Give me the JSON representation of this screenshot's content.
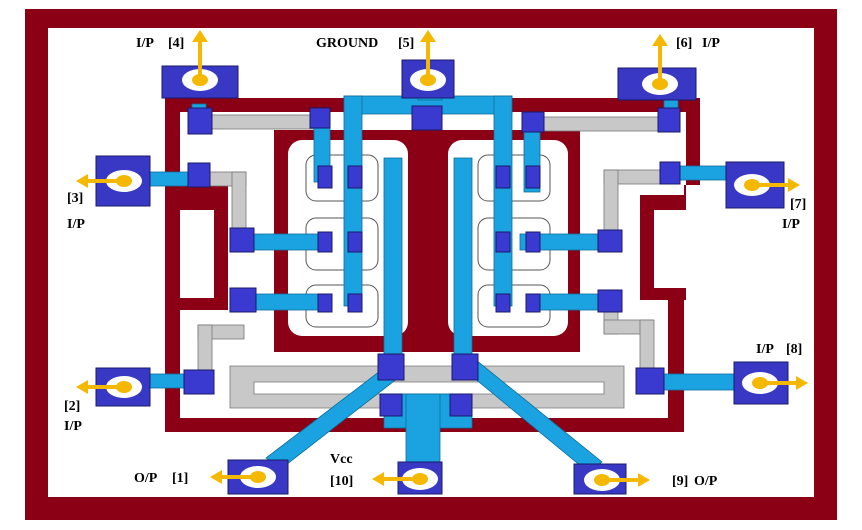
{
  "colors": {
    "frame": "#8b0015",
    "background": "#ffffff",
    "metal": "#1aa3e0",
    "pad": "#3838c4",
    "contact": "#3a3ad0",
    "poly": "#c8c8c8",
    "arrow": "#f5b800"
  },
  "pads": [
    {
      "id": "pad-1",
      "number": "[1]",
      "label": "O/P",
      "arrow": "left"
    },
    {
      "id": "pad-2",
      "number": "[2]",
      "label": "I/P",
      "arrow": "left"
    },
    {
      "id": "pad-3",
      "number": "[3]",
      "label": "I/P",
      "arrow": "left"
    },
    {
      "id": "pad-4",
      "number": "[4]",
      "label": "I/P",
      "arrow": "up"
    },
    {
      "id": "pad-5",
      "number": "[5]",
      "label": "GROUND",
      "arrow": "up"
    },
    {
      "id": "pad-6",
      "number": "[6]",
      "label": "I/P",
      "arrow": "up"
    },
    {
      "id": "pad-7",
      "number": "[7]",
      "label": "I/P",
      "arrow": "right"
    },
    {
      "id": "pad-8",
      "number": "[8]",
      "label": "I/P",
      "arrow": "right"
    },
    {
      "id": "pad-9",
      "number": "[9]",
      "label": "O/P",
      "arrow": "right"
    },
    {
      "id": "pad-10",
      "number": "[10]",
      "label": "Vcc",
      "arrow": "left"
    }
  ]
}
